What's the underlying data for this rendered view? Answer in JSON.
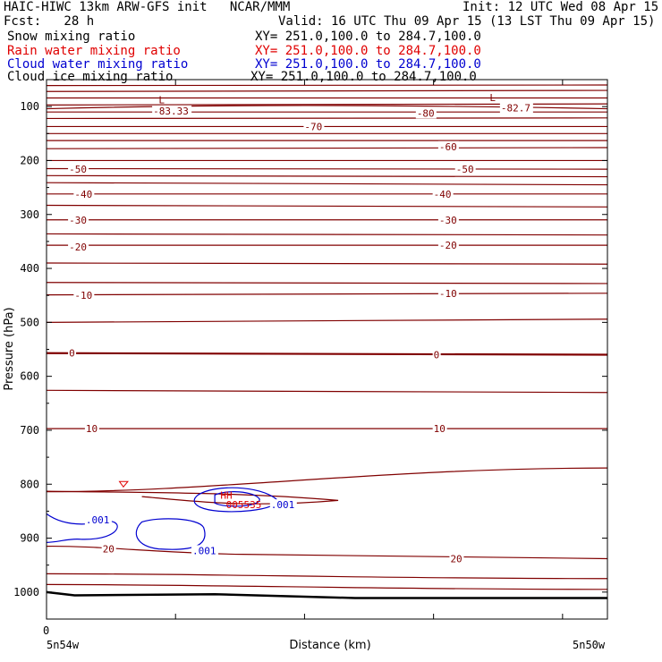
{
  "header": {
    "title_left": "HAIC-HIWC 13km ARW-GFS init   NCAR/MMM",
    "init": "Init: 12 UTC Wed 08 Apr 15",
    "fcst": "Fcst:   28 h",
    "valid": "Valid: 16 UTC Thu 09 Apr 15 (13 LST Thu 09 Apr 15)",
    "fields": [
      {
        "name": "Snow mixing ratio",
        "xy": "XY= 251.0,100.0 to 284.7,100.0",
        "color": "#000000"
      },
      {
        "name": "Rain water mixing ratio",
        "xy": "XY= 251.0,100.0 to 284.7,100.0",
        "color": "#e00000"
      },
      {
        "name": "Cloud water mixing ratio",
        "xy": "XY= 251.0,100.0 to 284.7,100.0",
        "color": "#0000d0"
      },
      {
        "name": "Cloud ice mixing ratio",
        "xy": "XY= 251.0,100.0 to 284.7,100.0",
        "color": "#000000"
      }
    ]
  },
  "chart_data": {
    "type": "line",
    "ylabel": "Pressure (hPa)",
    "xlabel": "Distance (km)",
    "y_ticks": [
      100,
      200,
      300,
      400,
      500,
      600,
      700,
      800,
      900,
      1000
    ],
    "ylim": [
      1050,
      50
    ],
    "x_tick_label": "0",
    "x_left_label": "5n54w",
    "x_right_label": "5n50w",
    "temperature_contour_color": "#800000",
    "cloud_water_color": "#0000d0",
    "rain_color": "#e00000",
    "temperature_labels": [
      {
        "text": "-83.33",
        "x": 0.19,
        "p": 108
      },
      {
        "text": "-82.7",
        "x": 0.81,
        "p": 102
      },
      {
        "text": "-80",
        "x": 0.66,
        "p": 112
      },
      {
        "text": "-70",
        "x": 0.46,
        "p": 137
      },
      {
        "text": "-60",
        "x": 0.7,
        "p": 174
      },
      {
        "text": "-50",
        "x": 0.04,
        "p": 216
      },
      {
        "text": "-50",
        "x": 0.73,
        "p": 216
      },
      {
        "text": "-40",
        "x": 0.05,
        "p": 262
      },
      {
        "text": "-40",
        "x": 0.69,
        "p": 262
      },
      {
        "text": "-30",
        "x": 0.04,
        "p": 310
      },
      {
        "text": "-30",
        "x": 0.7,
        "p": 310
      },
      {
        "text": "-20",
        "x": 0.04,
        "p": 360
      },
      {
        "text": "-20",
        "x": 0.7,
        "p": 357
      },
      {
        "text": "-10",
        "x": 0.05,
        "p": 450
      },
      {
        "text": "-10",
        "x": 0.7,
        "p": 446
      },
      {
        "text": "0",
        "x": 0.04,
        "p": 557
      },
      {
        "text": "0",
        "x": 0.69,
        "p": 560
      },
      {
        "text": "10",
        "x": 0.07,
        "p": 697
      },
      {
        "text": "10",
        "x": 0.69,
        "p": 697
      },
      {
        "text": "20",
        "x": 0.1,
        "p": 920
      },
      {
        "text": "20",
        "x": 0.72,
        "p": 938
      }
    ],
    "low_markers": [
      {
        "text": "L",
        "x": 0.2,
        "p": 87
      },
      {
        "text": "L",
        "x": 0.79,
        "p": 83
      }
    ],
    "cloud_labels": [
      {
        "text": ".001",
        "x": 0.07,
        "p": 866
      },
      {
        "text": ".001",
        "x": 0.26,
        "p": 923
      },
      {
        "text": ".001",
        "x": 0.4,
        "p": 838
      }
    ],
    "hh_labels": [
      {
        "text": "HH",
        "x": 0.31,
        "p": 820
      },
      {
        "text": "005535",
        "x": 0.32,
        "p": 838
      }
    ],
    "surface": [
      [
        0,
        1000
      ],
      [
        0.05,
        1006
      ],
      [
        0.3,
        1004
      ],
      [
        0.55,
        1011
      ],
      [
        1.0,
        1011
      ]
    ]
  }
}
